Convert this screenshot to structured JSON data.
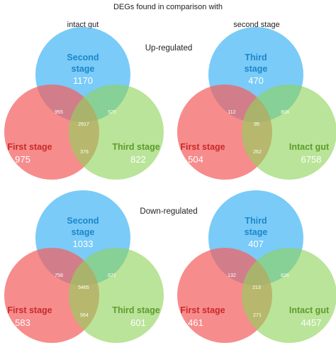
{
  "title": "DEGs found in comparison with",
  "column_headers": [
    "intact gut",
    "second stage"
  ],
  "section_labels": [
    "Up-regulated",
    "Down-regulated"
  ],
  "colors": {
    "top_circle": "#55bdf6",
    "left_circle": "#f45f5f",
    "right_circle": "#8fd45b",
    "top_label": "#1d86c9",
    "left_label": "#c92a2a",
    "right_label": "#5e9b2e",
    "intersection_text": "#ffffff",
    "header_text": "#222222"
  },
  "diagrams": [
    {
      "column": 0,
      "row": 0,
      "sets": {
        "top": {
          "name": [
            "Second",
            "stage"
          ],
          "unique": "1170"
        },
        "left": {
          "name": [
            "First stage"
          ],
          "unique": "975"
        },
        "right": {
          "name": [
            "Third stage"
          ],
          "unique": "822"
        }
      },
      "intersections": {
        "top_left": "955",
        "top_right": "525",
        "left_right": "376",
        "all": "2917"
      }
    },
    {
      "column": 1,
      "row": 0,
      "sets": {
        "top": {
          "name": [
            "Third",
            "stage"
          ],
          "unique": "470"
        },
        "left": {
          "name": [
            "First stage"
          ],
          "unique": "504"
        },
        "right": {
          "name": [
            "Intact gut"
          ],
          "unique": "6758"
        }
      },
      "intersections": {
        "top_left": "112",
        "top_right": "808",
        "left_right": "262",
        "all": "99"
      }
    },
    {
      "column": 0,
      "row": 1,
      "sets": {
        "top": {
          "name": [
            "Second",
            "stage"
          ],
          "unique": "1033"
        },
        "left": {
          "name": [
            "First stage"
          ],
          "unique": "583"
        },
        "right": {
          "name": [
            "Third stage"
          ],
          "unique": "601"
        }
      },
      "intersections": {
        "top_left": "758",
        "top_right": "671",
        "left_right": "564",
        "all": "5465"
      }
    },
    {
      "column": 1,
      "row": 1,
      "sets": {
        "top": {
          "name": [
            "Third",
            "stage"
          ],
          "unique": "407"
        },
        "left": {
          "name": [
            "First stage"
          ],
          "unique": "461"
        },
        "right": {
          "name": [
            "Intact gut"
          ],
          "unique": "4457"
        }
      },
      "intersections": {
        "top_left": "132",
        "top_right": "626",
        "left_right": "271",
        "all": "213"
      }
    }
  ]
}
